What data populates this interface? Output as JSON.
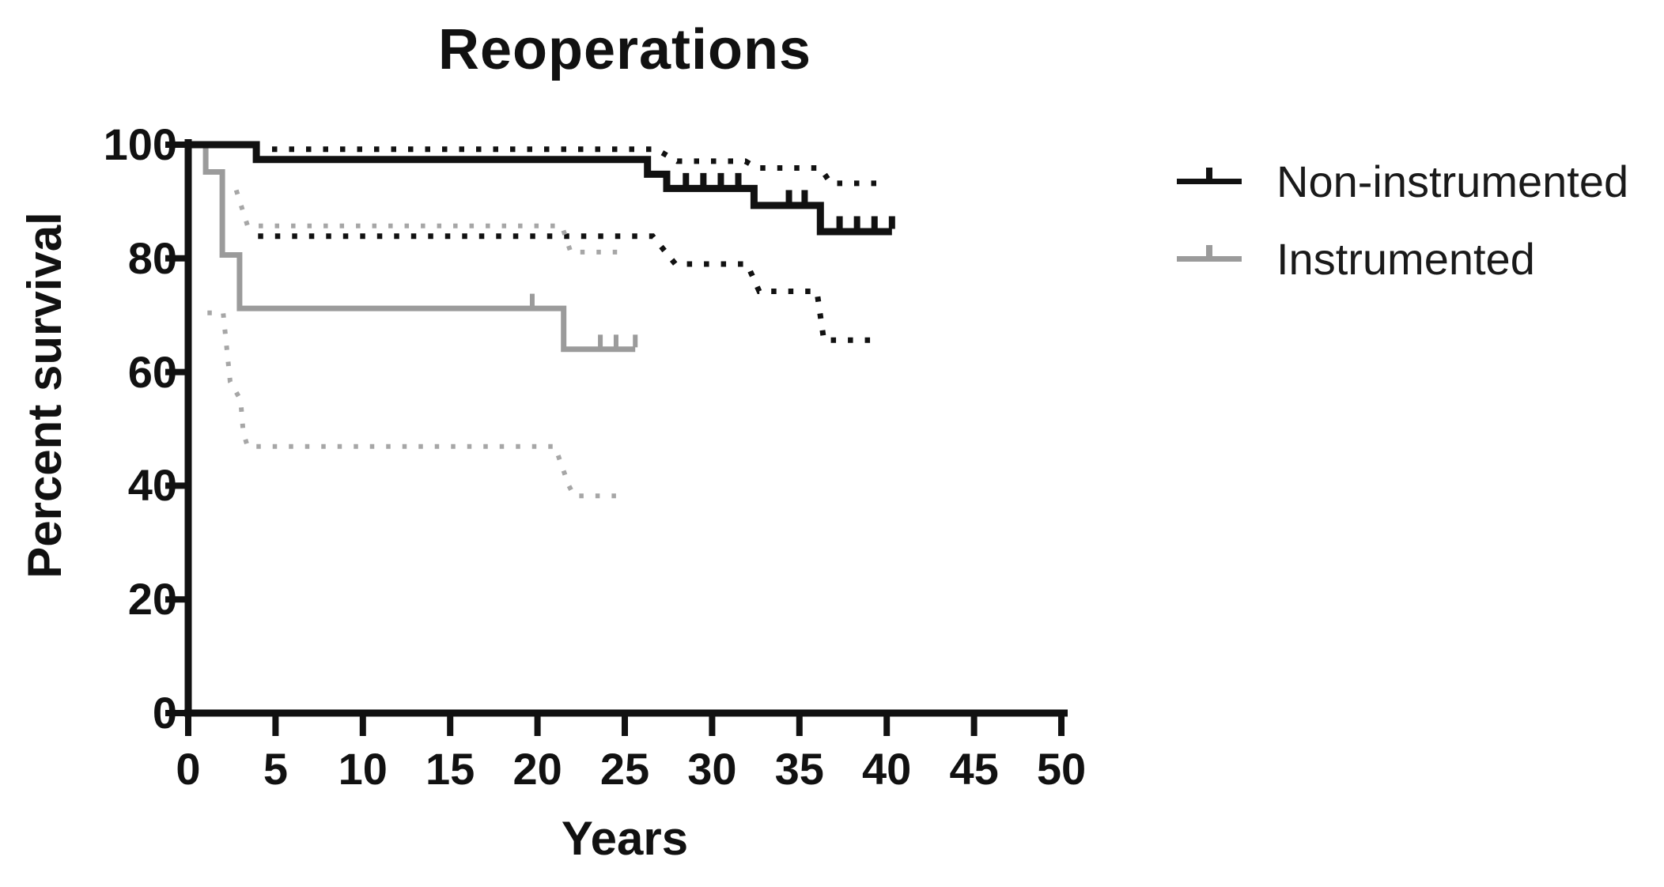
{
  "figure": {
    "background": "#ffffff"
  },
  "chart_data": {
    "type": "line",
    "subtype": "kaplan-meier-step",
    "title": "Reoperations",
    "xlabel": "Years",
    "ylabel": "Percent survival",
    "xlim": [
      0,
      50
    ],
    "ylim": [
      0,
      100
    ],
    "xticks": [
      0,
      5,
      10,
      15,
      20,
      25,
      30,
      35,
      40,
      45,
      50
    ],
    "yticks": [
      0,
      20,
      40,
      60,
      80,
      100
    ],
    "grid": false,
    "legend_position": "right",
    "axis_color": "#111111",
    "legend": [
      {
        "label": "Non-instrumented",
        "color": "#111111"
      },
      {
        "label": "Instrumented",
        "color": "#9b9b9b"
      }
    ],
    "series": [
      {
        "name": "Non-instrumented upper 95% CI",
        "group": "Non-instrumented",
        "role": "ci-upper",
        "line": "dotted",
        "color": "#111111",
        "width": 7,
        "points": [
          [
            4.8,
            99.2
          ],
          [
            26.8,
            99.2
          ],
          [
            28.0,
            97.1
          ],
          [
            31.9,
            97.1
          ],
          [
            32.6,
            95.9
          ],
          [
            36.2,
            95.9
          ],
          [
            36.8,
            93.2
          ],
          [
            39.5,
            93.2
          ]
        ]
      },
      {
        "name": "Non-instrumented lower 95% CI",
        "group": "Non-instrumented",
        "role": "ci-lower",
        "line": "dotted",
        "color": "#111111",
        "width": 7,
        "points": [
          [
            4.0,
            83.9
          ],
          [
            26.6,
            83.9
          ],
          [
            27.9,
            79.0
          ],
          [
            32.0,
            79.0
          ],
          [
            32.7,
            74.2
          ],
          [
            36.0,
            74.2
          ],
          [
            36.4,
            65.6
          ],
          [
            39.4,
            65.6
          ]
        ]
      },
      {
        "name": "Instrumented upper 95% CI",
        "group": "Instrumented",
        "role": "ci-upper",
        "line": "dotted",
        "color": "#a6a6a6",
        "width": 6,
        "points": [
          [
            2.75,
            92.0
          ],
          [
            3.4,
            85.7
          ],
          [
            21.4,
            85.7
          ],
          [
            21.9,
            81.1
          ],
          [
            24.9,
            81.1
          ]
        ]
      },
      {
        "name": "Instrumented lower 95% CI",
        "group": "Instrumented",
        "role": "ci-lower",
        "line": "dotted",
        "color": "#a6a6a6",
        "width": 6,
        "points": [
          [
            1.1,
            70.4
          ],
          [
            2.0,
            70.4
          ],
          [
            2.4,
            58.3
          ],
          [
            3.0,
            55.1
          ],
          [
            3.15,
            49.3
          ],
          [
            3.4,
            46.9
          ],
          [
            21.0,
            46.9
          ],
          [
            21.8,
            40.0
          ],
          [
            22.1,
            38.2
          ],
          [
            25.0,
            38.2
          ]
        ]
      },
      {
        "name": "Instrumented",
        "group": "Instrumented",
        "role": "estimate",
        "line": "solid",
        "color": "#9b9b9b",
        "width": 7,
        "points": [
          [
            0,
            100
          ],
          [
            1.0,
            100
          ],
          [
            1.0,
            95.2
          ],
          [
            1.95,
            95.2
          ],
          [
            1.95,
            80.6
          ],
          [
            2.94,
            80.6
          ],
          [
            2.94,
            71.2
          ],
          [
            21.5,
            71.2
          ],
          [
            21.5,
            64.0
          ],
          [
            25.6,
            64.0
          ]
        ],
        "censor_marks": [
          [
            19.7,
            71.2
          ],
          [
            23.6,
            64.0
          ],
          [
            24.5,
            64.0
          ],
          [
            25.6,
            64.0
          ]
        ]
      },
      {
        "name": "Non-instrumented",
        "group": "Non-instrumented",
        "role": "estimate",
        "line": "solid",
        "color": "#111111",
        "width": 9,
        "points": [
          [
            0,
            100
          ],
          [
            3.9,
            100
          ],
          [
            3.9,
            97.4
          ],
          [
            26.3,
            97.4
          ],
          [
            26.3,
            94.8
          ],
          [
            27.4,
            94.8
          ],
          [
            27.4,
            92.3
          ],
          [
            32.4,
            92.3
          ],
          [
            32.4,
            89.3
          ],
          [
            36.2,
            89.3
          ],
          [
            36.2,
            84.7
          ],
          [
            40.3,
            84.7
          ]
        ],
        "censor_marks": [
          [
            28.5,
            92.3
          ],
          [
            29.5,
            92.3
          ],
          [
            30.5,
            92.3
          ],
          [
            31.5,
            92.3
          ],
          [
            34.4,
            89.3
          ],
          [
            35.3,
            89.3
          ],
          [
            37.3,
            84.7
          ],
          [
            38.3,
            84.7
          ],
          [
            39.3,
            84.7
          ],
          [
            40.3,
            84.7
          ]
        ]
      }
    ]
  }
}
